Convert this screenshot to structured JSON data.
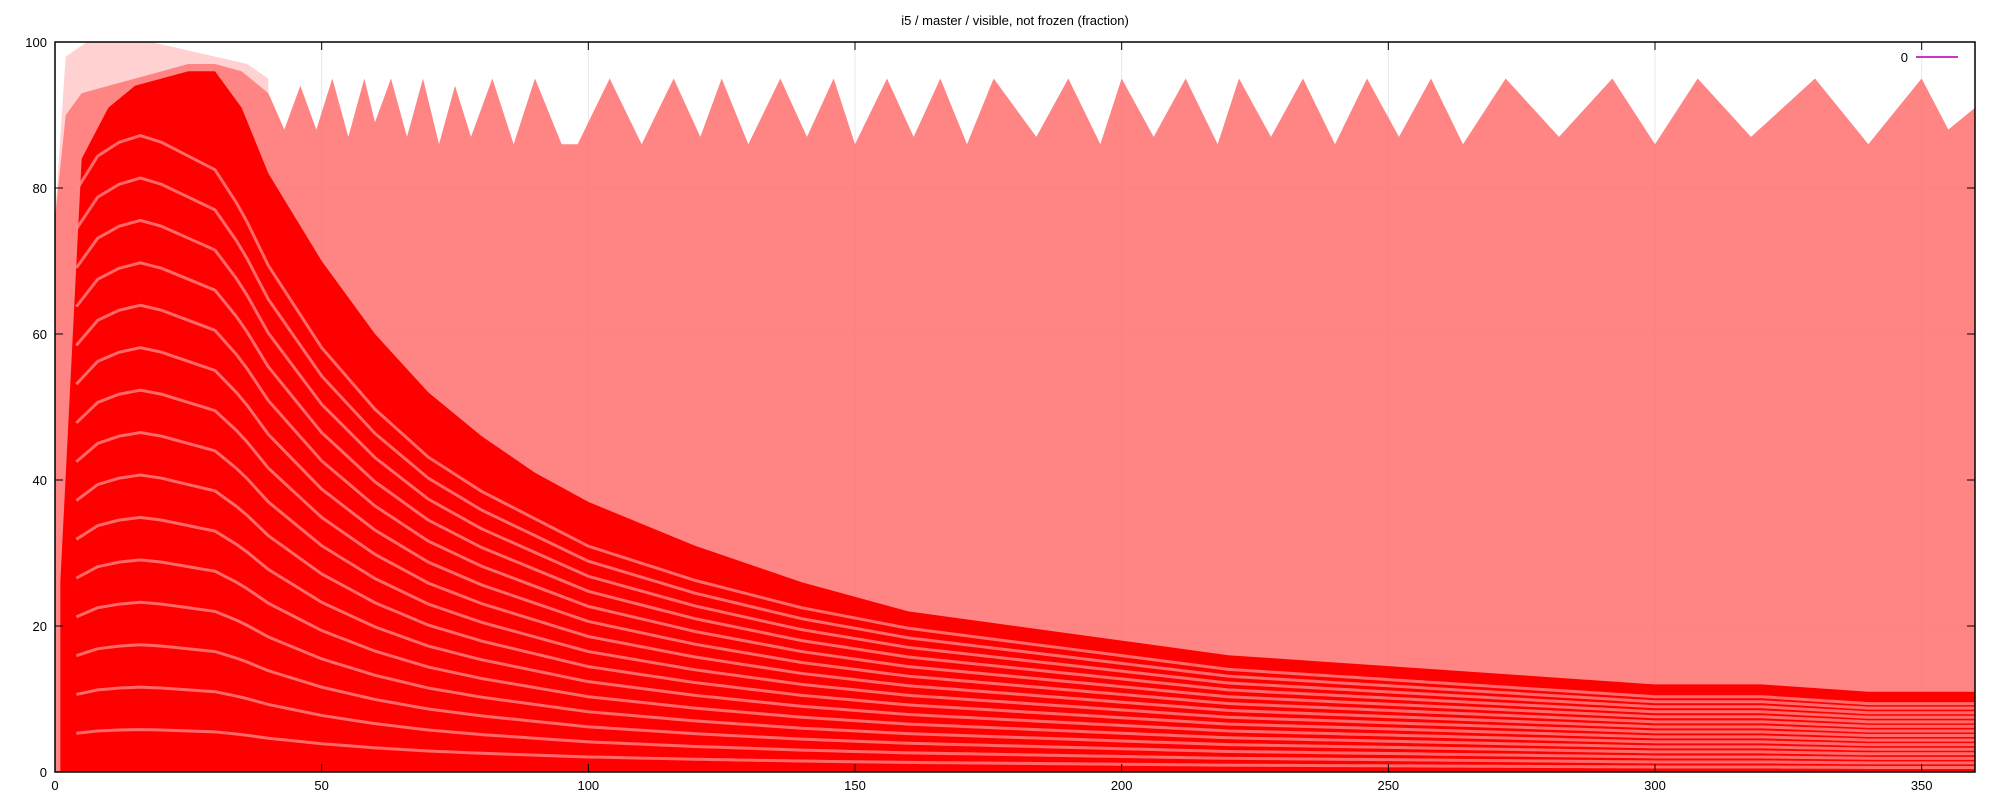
{
  "chart_data": {
    "type": "heatmap",
    "title": "i5 / master / visible, not frozen (fraction)",
    "xlabel": "",
    "ylabel": "",
    "xlim": [
      0,
      360
    ],
    "ylim": [
      0,
      100
    ],
    "x_ticks": [
      0,
      50,
      100,
      150,
      200,
      250,
      300,
      350
    ],
    "y_ticks": [
      0,
      20,
      40,
      60,
      80,
      100
    ],
    "grid": true,
    "legend": {
      "placement": "top-right",
      "entries": [
        {
          "label": "0",
          "color": "#cc33cc"
        }
      ]
    },
    "colors": {
      "dense": "#ff0000",
      "medium": "#ff6f6f",
      "sparse": "#ffb3b3",
      "axis": "#000000"
    },
    "upper_envelope": {
      "x": [
        0,
        2,
        5,
        10,
        15,
        20,
        25,
        30,
        35,
        40,
        43,
        46,
        49,
        52,
        55,
        58,
        60,
        63,
        66,
        69,
        72,
        75,
        78,
        82,
        86,
        90,
        95,
        98,
        104,
        110,
        116,
        121,
        125,
        130,
        136,
        141,
        146,
        150,
        156,
        161,
        166,
        171,
        176,
        184,
        190,
        196,
        200,
        206,
        212,
        218,
        222,
        228,
        234,
        240,
        246,
        252,
        258,
        264,
        272,
        282,
        292,
        300,
        308,
        318,
        330,
        340,
        350,
        355,
        360
      ],
      "y": [
        76,
        90,
        93,
        94,
        95,
        96,
        97,
        97,
        96,
        93,
        88,
        94,
        88,
        95,
        87,
        95,
        89,
        95,
        87,
        95,
        86,
        94,
        87,
        95,
        86,
        95,
        86,
        86,
        95,
        86,
        95,
        87,
        95,
        86,
        95,
        87,
        95,
        86,
        95,
        87,
        95,
        86,
        95,
        87,
        95,
        86,
        95,
        87,
        95,
        86,
        95,
        87,
        95,
        86,
        95,
        87,
        95,
        86,
        95,
        87,
        95,
        86,
        95,
        87,
        95,
        86,
        95,
        88,
        91
      ]
    },
    "dense_band": {
      "x": [
        1,
        5,
        10,
        15,
        20,
        25,
        30,
        35,
        40,
        50,
        60,
        70,
        80,
        90,
        100,
        120,
        140,
        160,
        180,
        200,
        220,
        240,
        260,
        280,
        300,
        320,
        340,
        360
      ],
      "y": [
        26,
        84,
        91,
        94,
        95,
        96,
        96,
        91,
        82,
        70,
        60,
        52,
        46,
        41,
        37,
        31,
        26,
        22,
        20,
        18,
        16,
        15,
        14,
        13,
        12,
        12,
        11,
        11
      ]
    },
    "bands": {
      "count": 16,
      "x": [
        4,
        8,
        12,
        16,
        20,
        25,
        30,
        35,
        40,
        50,
        60,
        70,
        80,
        90,
        100,
        120,
        140,
        160,
        180,
        200,
        220,
        240,
        260,
        280,
        300,
        320,
        340,
        360
      ],
      "y_top": [
        85,
        90,
        92,
        93,
        92,
        90,
        88,
        82,
        74,
        62,
        53,
        46,
        41,
        37,
        33,
        28,
        24,
        21,
        19,
        17,
        15,
        14,
        13,
        12,
        11,
        11,
        10,
        10
      ]
    }
  }
}
